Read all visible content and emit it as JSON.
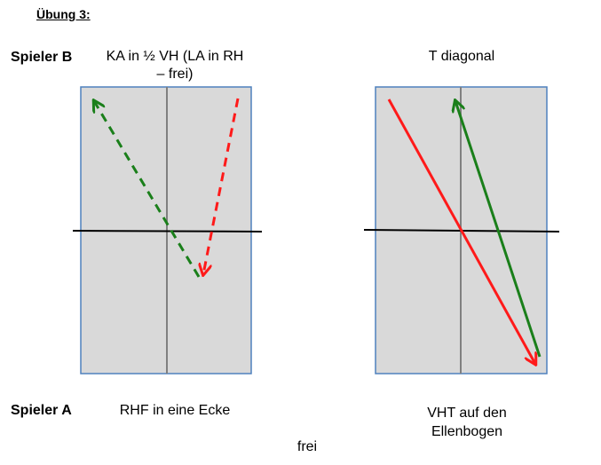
{
  "title": "Übung 3:",
  "player_b": "Spieler B",
  "player_a": "Spieler A",
  "left": {
    "caption_top_line1": "KA in ½ VH (LA in RH",
    "caption_top_line2": "– frei)",
    "caption_bottom": "RHF in eine Ecke"
  },
  "right": {
    "caption_top": "T diagonal",
    "caption_bottom_line1": "VHT auf den",
    "caption_bottom_line2": "Ellenbogen"
  },
  "footer": "frei",
  "colors": {
    "table_fill": "#d9d9d9",
    "table_border": "#4f81bd",
    "center_line": "#808080",
    "net": "#000000",
    "green": "#1a7f1a",
    "red": "#ff1a1a"
  }
}
